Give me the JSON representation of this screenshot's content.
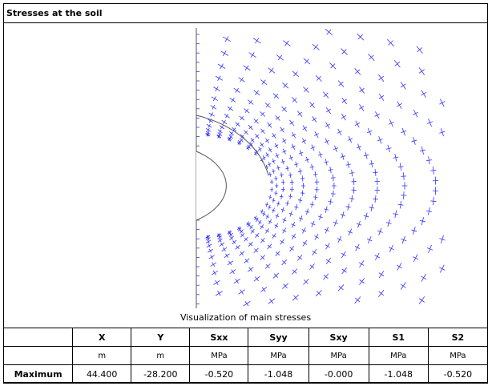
{
  "title": "Stresses at the soil",
  "caption": "Visualization of main stresses",
  "colors": {
    "stress_cross": "#3333ff",
    "boundary": "#555555",
    "border": "#000000"
  },
  "table": {
    "headers": [
      "",
      "X",
      "Y",
      "Sxx",
      "Syy",
      "Sxy",
      "S1",
      "S2"
    ],
    "units": [
      "",
      "m",
      "m",
      "MPa",
      "MPa",
      "MPa",
      "MPa",
      "MPa"
    ],
    "rows": [
      {
        "label": "Maximum",
        "values": [
          "44.400",
          "-28.200",
          "-0.520",
          "-1.048",
          "-0.000",
          "-1.048",
          "-0.520"
        ]
      }
    ]
  }
}
